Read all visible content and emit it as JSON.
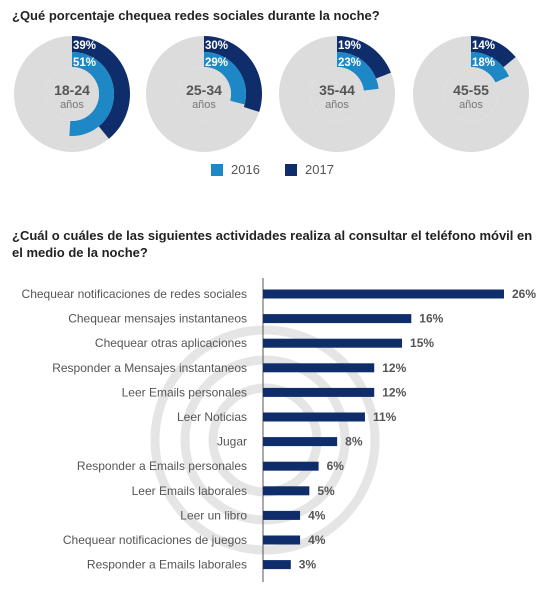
{
  "colors": {
    "c2016": "#1e88c6",
    "c2017": "#0f2d6b",
    "ring": "#dcdcdc",
    "bar": "#0f2d6b",
    "axis": "#555555",
    "watermark": "#e3e3e3"
  },
  "titles": {
    "donuts": "¿Qué porcentaje chequea redes sociales durante la noche?",
    "bars": "¿Cuál o cuáles de las siguientes actividades realiza al consultar el teléfono móvil en el medio de la noche?"
  },
  "legend": {
    "y2016": "2016",
    "y2017": "2017"
  },
  "chart_data": [
    {
      "type": "pie",
      "title": "¿Qué porcentaje chequea redes sociales durante la noche?",
      "series_names": [
        "2016",
        "2017"
      ],
      "groups": [
        {
          "label": "18-24",
          "sublabel": "años",
          "v2016": 51,
          "v2017": 39,
          "l2016": "51%",
          "l2017": "39%"
        },
        {
          "label": "25-34",
          "sublabel": "años",
          "v2016": 29,
          "v2017": 30,
          "l2016": "29%",
          "l2017": "30%"
        },
        {
          "label": "35-44",
          "sublabel": "años",
          "v2016": 23,
          "v2017": 19,
          "l2016": "23%",
          "l2017": "19%"
        },
        {
          "label": "45-55",
          "sublabel": "años",
          "v2016": 18,
          "v2017": 14,
          "l2016": "18%",
          "l2017": "14%"
        }
      ]
    },
    {
      "type": "bar",
      "orientation": "horizontal",
      "title": "¿Cuál o cuáles de las siguientes actividades realiza al consultar el teléfono móvil en el medio de la noche?",
      "categories": [
        "Chequear notificaciones de redes sociales",
        "Chequear mensajes instantaneos",
        "Chequear otras aplicaciones",
        "Responder a Mensajes instantaneos",
        "Leer Emails personales",
        "Leer Noticias",
        "Jugar",
        "Responder a Emails personales",
        "Leer Emails laborales",
        "Leer un libro",
        "Chequear notificaciones de juegos",
        "Responder a Emails laborales"
      ],
      "values": [
        26,
        16,
        15,
        12,
        12,
        11,
        8,
        6,
        5,
        4,
        4,
        3
      ],
      "value_labels": [
        "26%",
        "16%",
        "15%",
        "12%",
        "12%",
        "11%",
        "8%",
        "6%",
        "5%",
        "4%",
        "4%",
        "3%"
      ],
      "xlim": [
        0,
        26
      ]
    }
  ]
}
